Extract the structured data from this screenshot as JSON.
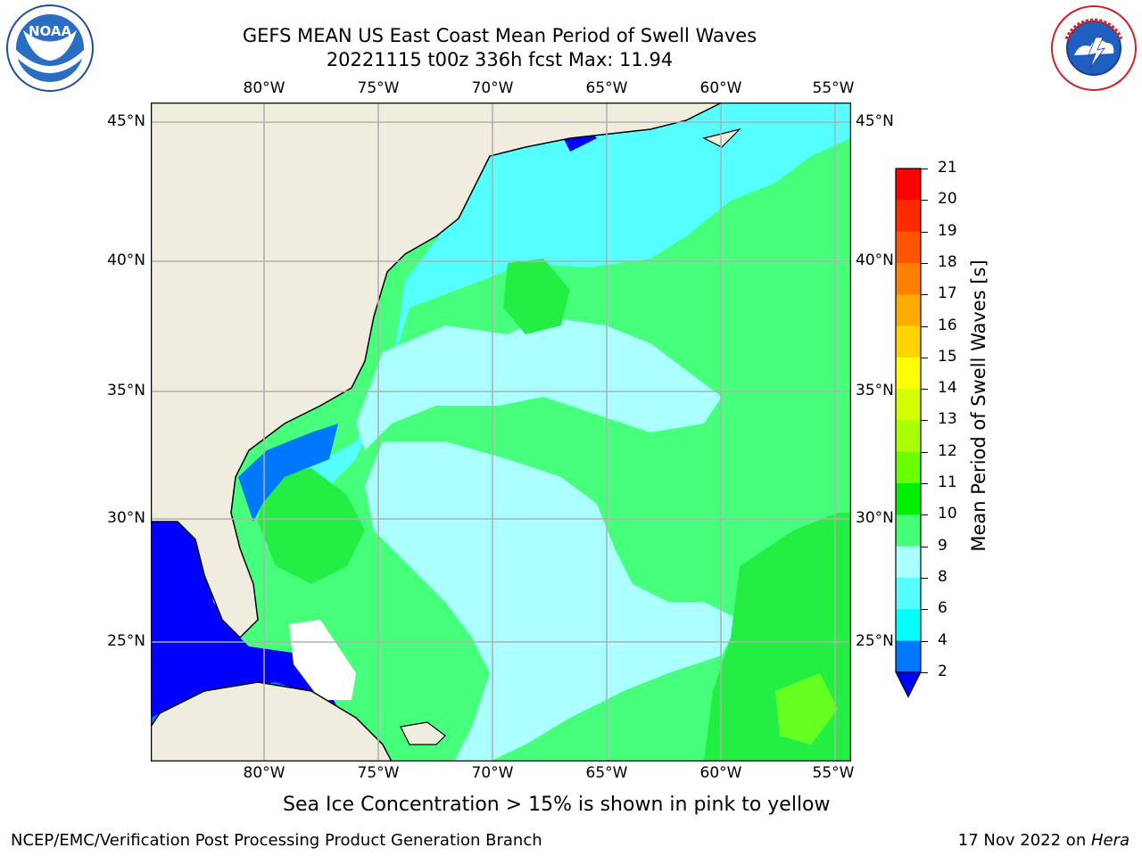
{
  "header": {
    "title_line1": "GEFS MEAN US East Coast Mean Period of Swell Waves",
    "title_line2": "20221115 t00z 336h fcst   Max: 11.94"
  },
  "logos": {
    "left": {
      "text": "NOAA",
      "icon": "noaa-logo"
    },
    "right": {
      "text": "NATIONAL WEATHER SERVICE",
      "icon": "nws-logo"
    }
  },
  "map": {
    "lon_labels": [
      "80°W",
      "75°W",
      "70°W",
      "65°W",
      "60°W",
      "55°W"
    ],
    "lat_labels": [
      "45°N",
      "40°N",
      "35°N",
      "30°N",
      "25°N"
    ],
    "extent": {
      "lon": [
        -85,
        -54.5
      ],
      "lat": [
        20.5,
        46.5
      ]
    },
    "gridlines": true,
    "colors": {
      "land": "#efedde",
      "grid": "#b0b0b0",
      "coast": "#000000"
    }
  },
  "colorbar": {
    "title": "Mean Period of Swell Waves [s]",
    "ticks": [
      "21",
      "20",
      "19",
      "18",
      "17",
      "16",
      "15",
      "14",
      "13",
      "12",
      "11",
      "10",
      "9",
      "8",
      "6",
      "4",
      "2"
    ],
    "bins_top_to_bottom": [
      "#ff0000",
      "#ff2a00",
      "#ff5500",
      "#ff7f00",
      "#ffaa00",
      "#ffd400",
      "#ffff00",
      "#d4ff00",
      "#aaff00",
      "#6aff00",
      "#00ee00",
      "#44ff77",
      "#aaffff",
      "#55ffff",
      "#00ffff",
      "#0077ff"
    ],
    "extend_color": "#0000ff"
  },
  "notes": {
    "sea_ice": "Sea Ice Concentration > 15% is shown in pink to yellow"
  },
  "footer": {
    "left": "NCEP/EMC/Verification Post Processing Product Generation Branch",
    "right_prefix": "17 Nov 2022 on ",
    "right_host": "Hera"
  }
}
